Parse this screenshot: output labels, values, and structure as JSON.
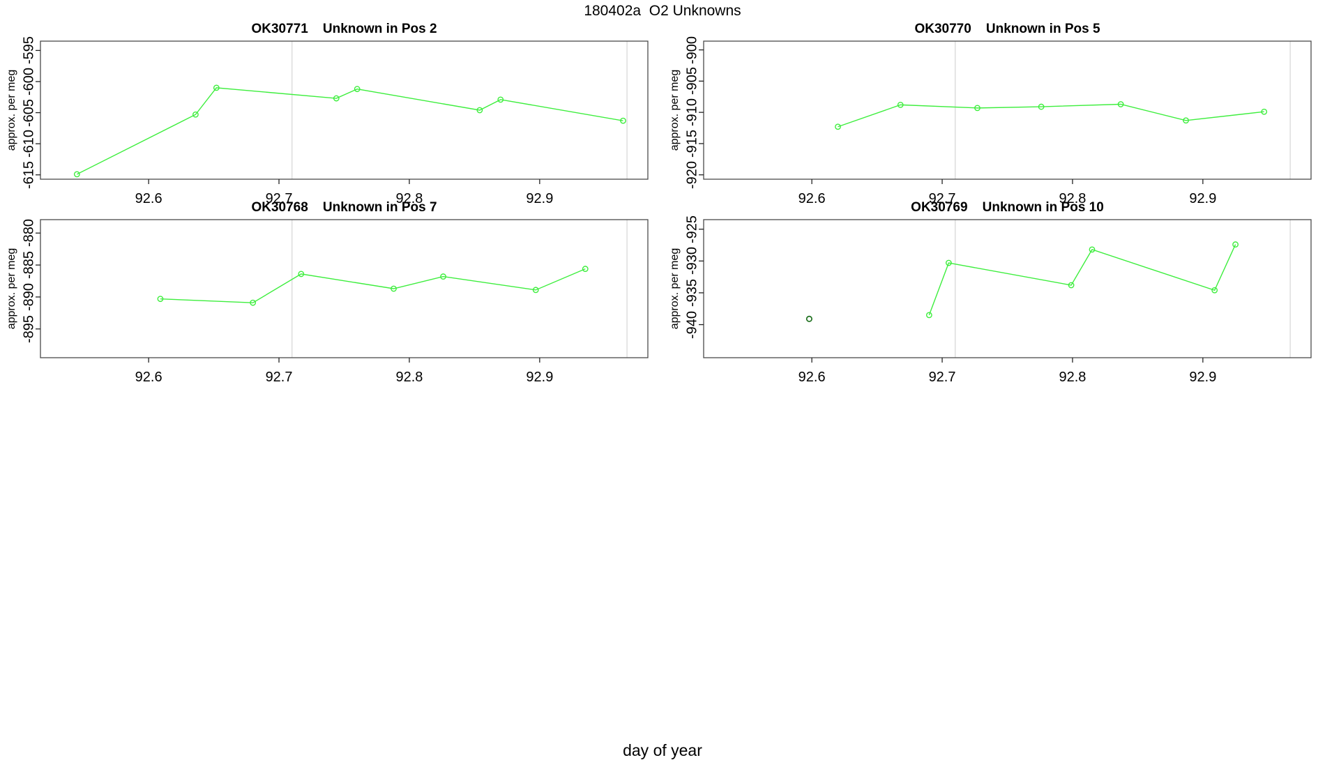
{
  "figure_title": "180402a  O2 Unknowns",
  "x_axis_label": "day of year",
  "colors": {
    "series_green": "#3dee3d",
    "isolated_point_green": "#1d6f1d",
    "gridline_gray": "#d8d8d8",
    "box_gray": "#4a4a4a",
    "tick_black": "#222222",
    "background": "#ffffff"
  },
  "chart_data": {
    "type": "line",
    "layout": "2x2-panels",
    "grid": "two vertical reference lines per panel",
    "legend_position": "none",
    "x_axis": {
      "label": "day of year",
      "xlim": [
        92.517,
        92.983
      ],
      "ticks": [
        92.6,
        92.7,
        92.8,
        92.9
      ],
      "gridlines_x": [
        92.71,
        92.967
      ]
    },
    "panels": [
      {
        "title": "OK30771    Unknown in Pos 2",
        "ylabel": "approx. per meg",
        "ylim": [
          -615.7,
          -593.5
        ],
        "yticks": [
          -595,
          -600,
          -605,
          -610,
          -615
        ],
        "series": [
          {
            "name": "OK30771",
            "x": [
              92.545,
              92.636,
              92.652,
              92.744,
              92.76,
              92.854,
              92.87,
              92.964
            ],
            "y": [
              -614.9,
              -605.3,
              -601.0,
              -602.7,
              -601.2,
              -604.6,
              -602.9,
              -606.3
            ]
          }
        ],
        "isolated_points": []
      },
      {
        "title": "OK30770    Unknown in Pos 5",
        "ylabel": "approx. per meg",
        "ylim": [
          -920.7,
          -898.6
        ],
        "yticks": [
          -900,
          -905,
          -910,
          -915,
          -920
        ],
        "series": [
          {
            "name": "OK30770",
            "x": [
              92.62,
              92.668,
              92.727,
              92.776,
              92.837,
              92.887,
              92.947
            ],
            "y": [
              -912.3,
              -908.8,
              -909.3,
              -909.1,
              -908.7,
              -911.3,
              -909.9
            ]
          }
        ],
        "isolated_points": []
      },
      {
        "title": "OK30768    Unknown in Pos 7",
        "ylabel": "approx. per meg",
        "ylim": [
          -899.5,
          -877.9
        ],
        "yticks": [
          -880,
          -885,
          -890,
          -895
        ],
        "series": [
          {
            "name": "OK30768",
            "x": [
              92.609,
              92.68,
              92.717,
              92.788,
              92.826,
              92.897,
              92.935
            ],
            "y": [
              -890.3,
              -890.9,
              -886.4,
              -888.7,
              -886.8,
              -888.9,
              -885.6
            ]
          }
        ],
        "isolated_points": []
      },
      {
        "title": "OK30769    Unknown in Pos 10",
        "ylabel": "approx. per meg",
        "ylim": [
          -945.2,
          -923.5
        ],
        "yticks": [
          -925,
          -930,
          -935,
          -940
        ],
        "series": [
          {
            "name": "OK30769",
            "x": [
              92.69,
              92.705,
              92.799,
              92.815,
              92.909,
              92.925
            ],
            "y": [
              -938.5,
              -930.3,
              -933.8,
              -928.2,
              -934.6,
              -927.4
            ]
          }
        ],
        "isolated_points": [
          {
            "x": 92.598,
            "y": -939.1
          }
        ]
      }
    ]
  }
}
